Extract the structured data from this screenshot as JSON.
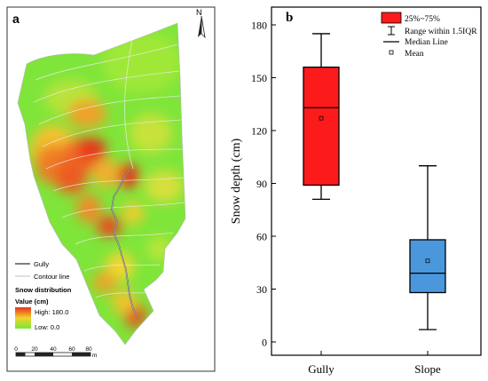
{
  "panel_a": {
    "label": "a",
    "north_letter": "N",
    "legend": {
      "gully": "Gully",
      "contour": "Contour line",
      "title1": "Snow distribution",
      "title2": "Value (cm)",
      "high": "High: 180.0",
      "low": "Low: 0.0"
    },
    "scale": {
      "ticks": [
        "0",
        "20",
        "40",
        "60",
        "80"
      ],
      "unit": "m"
    },
    "colors": {
      "high": "#e8301e",
      "mid": "#f2d32a",
      "low": "#76e837"
    }
  },
  "chart_data": {
    "type": "box",
    "label": "b",
    "ylabel": "Snow depth (cm)",
    "ylim": [
      0,
      190
    ],
    "yticks": [
      0,
      30,
      60,
      90,
      120,
      150,
      180
    ],
    "categories": [
      "Gully",
      "Slope"
    ],
    "boxes": [
      {
        "category": "Gully",
        "q1": 89,
        "median": 133,
        "q3": 156,
        "whisker_low": 81,
        "whisker_high": 175,
        "mean": 127,
        "color": "#fb1b1b"
      },
      {
        "category": "Slope",
        "q1": 28,
        "median": 39,
        "q3": 58,
        "whisker_low": 7,
        "whisker_high": 100,
        "mean": 46,
        "color": "#4a97dc"
      }
    ],
    "legend": {
      "box": "25%~75%",
      "whisker": "Range within 1.5IQR",
      "median": "Median Line",
      "mean": "Mean"
    }
  }
}
